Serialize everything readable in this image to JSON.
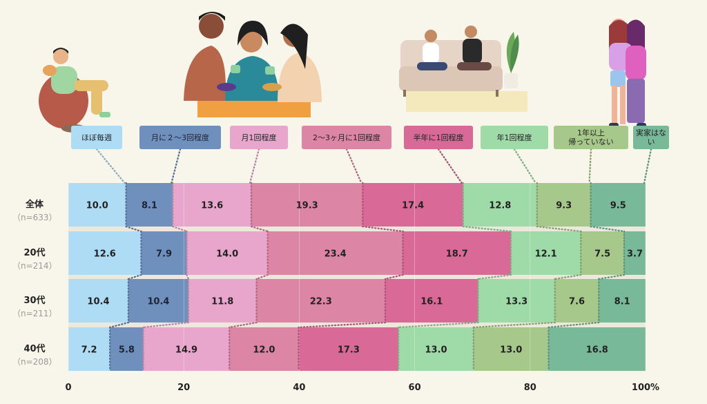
{
  "chart_data": {
    "type": "bar",
    "orientation": "horizontal-stacked-100",
    "categories": [
      {
        "label": "全体",
        "n": "（n=633）"
      },
      {
        "label": "20代",
        "n": "（n=214）"
      },
      {
        "label": "30代",
        "n": "（n=211）"
      },
      {
        "label": "40代",
        "n": "（n=208）"
      }
    ],
    "series": [
      {
        "name": "ほぼ毎週",
        "color": "#aedcf5",
        "text_color": "#222222",
        "values": [
          10.0,
          12.6,
          10.4,
          7.2
        ]
      },
      {
        "name": "月に２〜3回程度",
        "color": "#6f8fbd",
        "text_color": "#1d2433",
        "values": [
          8.1,
          7.9,
          10.4,
          5.8
        ]
      },
      {
        "name": "月1回程度",
        "color": "#e9a6cc",
        "text_color": "#222222",
        "values": [
          13.6,
          14.0,
          11.8,
          14.9
        ]
      },
      {
        "name": "2〜3ヶ月に1回程度",
        "color": "#dc85a4",
        "text_color": "#222222",
        "values": [
          19.3,
          23.4,
          22.3,
          12.0
        ]
      },
      {
        "name": "半年に1回程度",
        "color": "#d96a98",
        "text_color": "#222222",
        "values": [
          17.4,
          18.7,
          16.1,
          17.3
        ]
      },
      {
        "name": "年1回程度",
        "color": "#9fdba8",
        "text_color": "#222222",
        "values": [
          12.8,
          12.1,
          13.3,
          13.0
        ]
      },
      {
        "name": "1年以上\n帰っていない",
        "color": "#a6c88a",
        "text_color": "#222222",
        "values": [
          9.3,
          7.5,
          7.6,
          13.0
        ]
      },
      {
        "name": "実家はない",
        "color": "#78b99a",
        "text_color": "#222222",
        "values": [
          9.5,
          3.7,
          8.1,
          16.8
        ]
      }
    ],
    "x_ticks": [
      "0",
      "20",
      "40",
      "60",
      "80",
      "100%"
    ],
    "xlim": [
      0,
      100
    ],
    "grid": true
  }
}
